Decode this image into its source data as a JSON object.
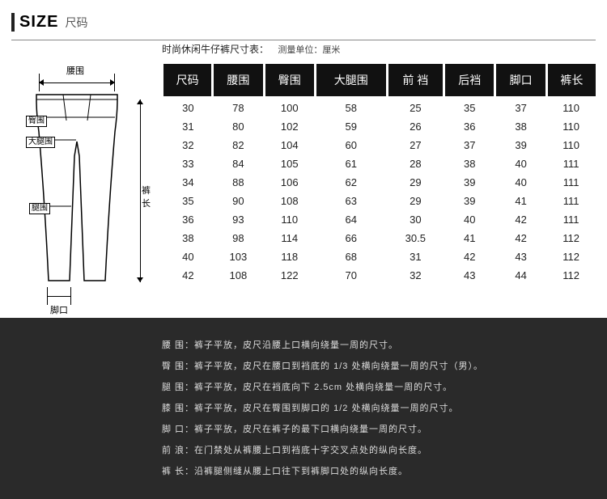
{
  "header": {
    "size_en": "SIZE",
    "size_zh": "尺码",
    "subtitle": "时尚休闲牛仔裤尺寸表：",
    "unit": "测量单位：厘米"
  },
  "diagram": {
    "waist": "腰围",
    "hip": "臀围",
    "thigh": "大腿围",
    "knee": "腿围",
    "hem": "脚口",
    "length_a": "裤",
    "length_b": "长"
  },
  "table": {
    "columns": [
      "尺码",
      "腰围",
      "臀围",
      "大腿围",
      "前 裆",
      "后裆",
      "脚口",
      "裤长"
    ],
    "rows": [
      [
        "30",
        "78",
        "100",
        "58",
        "25",
        "35",
        "37",
        "110"
      ],
      [
        "31",
        "80",
        "102",
        "59",
        "26",
        "36",
        "38",
        "110"
      ],
      [
        "32",
        "82",
        "104",
        "60",
        "27",
        "37",
        "39",
        "110"
      ],
      [
        "33",
        "84",
        "105",
        "61",
        "28",
        "38",
        "40",
        "111"
      ],
      [
        "34",
        "88",
        "106",
        "62",
        "29",
        "39",
        "40",
        "111"
      ],
      [
        "35",
        "90",
        "108",
        "63",
        "29",
        "39",
        "41",
        "111"
      ],
      [
        "36",
        "93",
        "110",
        "64",
        "30",
        "40",
        "42",
        "111"
      ],
      [
        "38",
        "98",
        "114",
        "66",
        "30.5",
        "41",
        "42",
        "112"
      ],
      [
        "40",
        "103",
        "118",
        "68",
        "31",
        "42",
        "43",
        "112"
      ],
      [
        "42",
        "108",
        "122",
        "70",
        "32",
        "43",
        "44",
        "112"
      ]
    ],
    "header_bg": "#111111",
    "header_color": "#ffffff",
    "body_color": "#222222",
    "font_size_header": 14,
    "font_size_body": 13
  },
  "footer": {
    "lines": [
      {
        "label": "腰 围",
        "text": "裤子平放，皮尺沿腰上口横向绕量一周的尺寸。"
      },
      {
        "label": "臀 围",
        "text": "裤子平放，皮尺在腰口到裆底的 1/3 处横向绕量一周的尺寸（男）。"
      },
      {
        "label": "腿 围",
        "text": "裤子平放，皮尺在裆底向下 2.5cm 处横向绕量一周的尺寸。"
      },
      {
        "label": "膝 围",
        "text": "裤子平放，皮尺在臀围到脚口的 1/2 处横向绕量一周的尺寸。"
      },
      {
        "label": "脚 口",
        "text": "裤子平放，皮尺在裤子的最下口横向绕量一周的尺寸。"
      },
      {
        "label": "前 浪",
        "text": "在门禁处从裤腰上口到裆底十字交叉点处的纵向长度。"
      },
      {
        "label": "裤 长",
        "text": "沿裤腿侧缝从腰上口往下到裤脚口处的纵向长度。"
      }
    ],
    "bg": "#2a2a2a",
    "color": "#dddddd",
    "font_size": 11
  }
}
